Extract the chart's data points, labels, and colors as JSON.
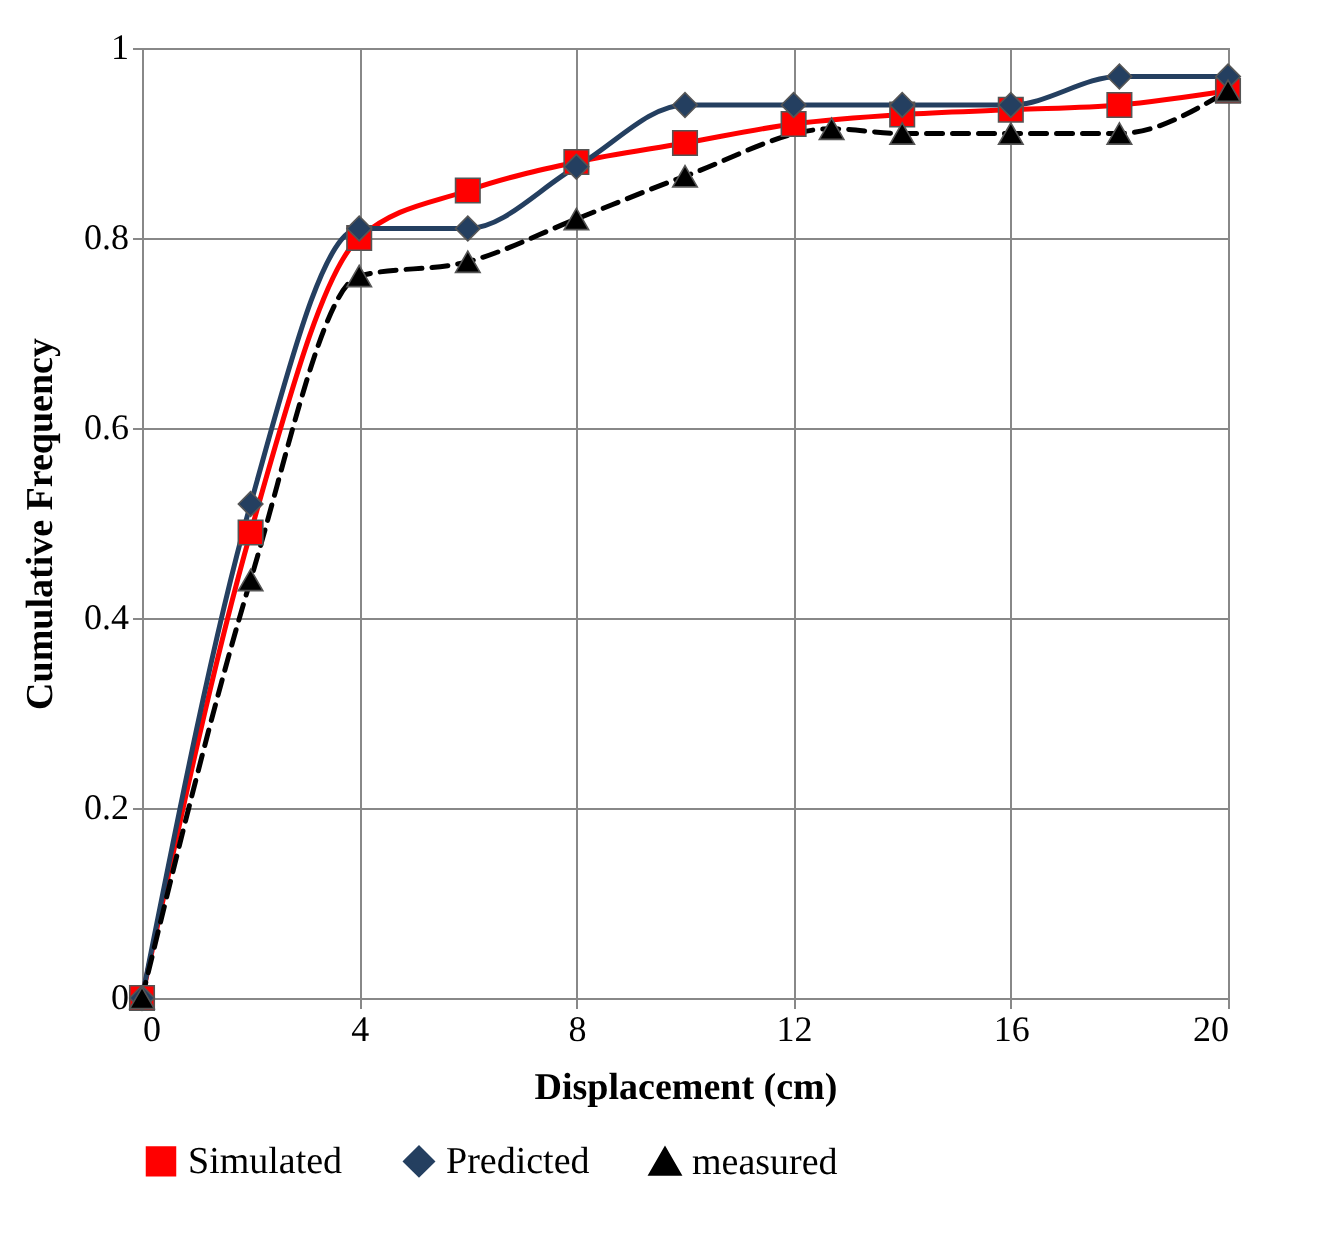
{
  "chart_data": {
    "type": "line",
    "xlabel": "Displacement (cm)",
    "ylabel": "Cumulative Frequency",
    "xlim": [
      0,
      20
    ],
    "xticks": [
      0,
      4,
      8,
      12,
      16,
      20
    ],
    "ylim": [
      0,
      1
    ],
    "yticks": [
      0,
      0.2,
      0.4,
      0.6,
      0.8,
      1
    ],
    "grid": true,
    "legend": "bottom",
    "series": [
      {
        "name": "Simulated",
        "color": "#ff0000",
        "marker": "square",
        "line_style": "solid",
        "x": [
          0,
          2,
          4,
          6,
          8,
          10,
          12,
          14,
          16,
          18,
          20
        ],
        "values": [
          0,
          0.49,
          0.8,
          0.85,
          0.88,
          0.9,
          0.92,
          0.93,
          0.935,
          0.94,
          0.955
        ]
      },
      {
        "name": "Predicted",
        "color": "#243f60",
        "marker": "diamond",
        "line_style": "solid",
        "x": [
          0,
          2,
          4,
          6,
          8,
          10,
          12,
          14,
          16,
          18,
          20
        ],
        "values": [
          0,
          0.52,
          0.81,
          0.81,
          0.875,
          0.94,
          0.94,
          0.94,
          0.94,
          0.97,
          0.97
        ]
      },
      {
        "name": "measured",
        "color": "#000000",
        "marker": "triangle",
        "line_style": "dashed",
        "x": [
          0,
          2,
          4,
          6,
          8,
          10,
          12.7,
          14,
          16,
          18,
          20
        ],
        "values": [
          0,
          0.44,
          0.76,
          0.775,
          0.82,
          0.865,
          0.915,
          0.91,
          0.91,
          0.91,
          0.955
        ]
      }
    ]
  }
}
